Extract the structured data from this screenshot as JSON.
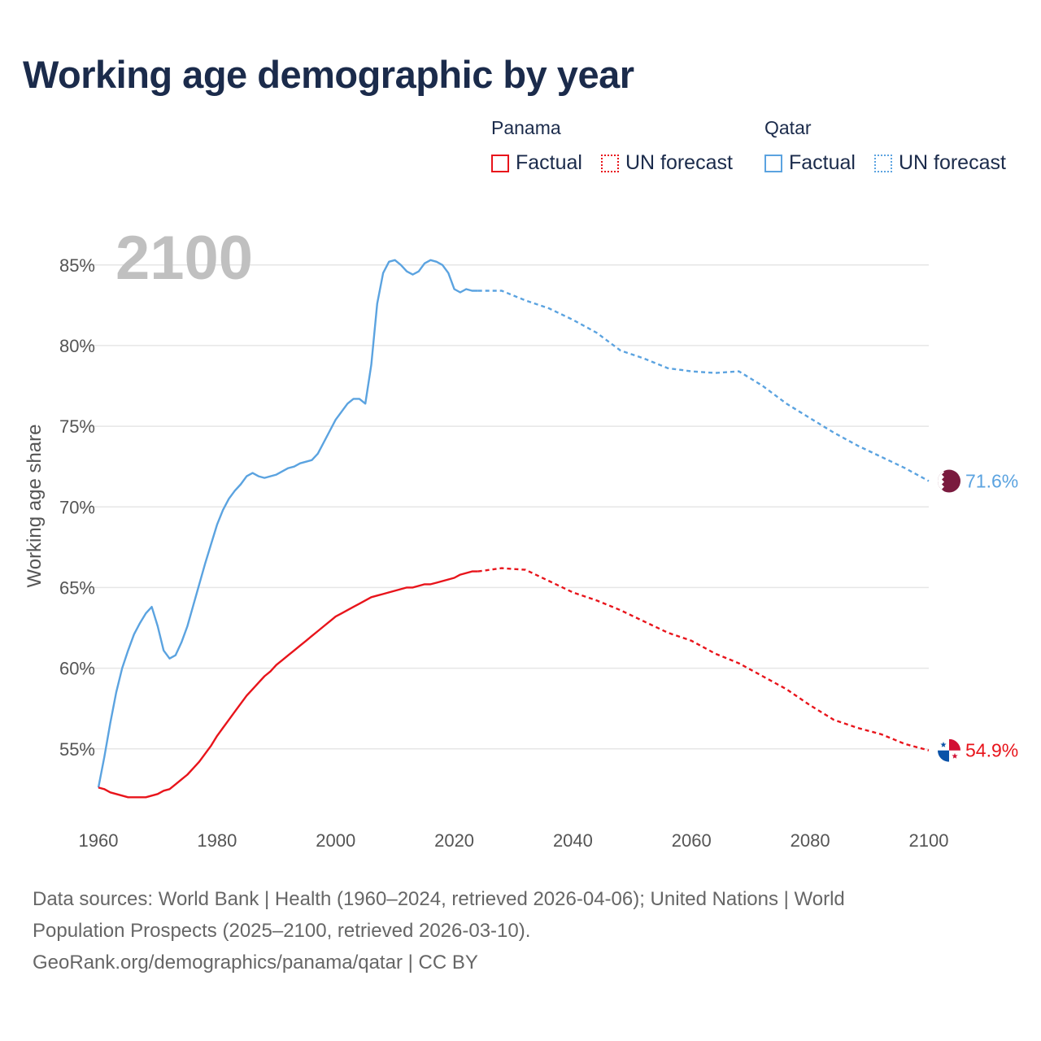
{
  "title": "Working age demographic by year",
  "legend": {
    "panama": {
      "group": "Panama",
      "factual": "Factual",
      "forecast": "UN forecast"
    },
    "qatar": {
      "group": "Qatar",
      "factual": "Factual",
      "forecast": "UN forecast"
    }
  },
  "source": {
    "line1": "Data sources: World Bank | Health (1960–2024, retrieved 2026-04-06); United Nations | World",
    "line2": "Population Prospects (2025–2100, retrieved 2026-03-10).",
    "line3": "GeoRank.org/demographics/panama/qatar | CC BY"
  },
  "chart_data": {
    "type": "line",
    "year_label": "2100",
    "ylabel": "Working age share",
    "xlim": [
      1960,
      2100
    ],
    "ylim": [
      50.5,
      86.5
    ],
    "x_ticks": [
      "1960",
      "1980",
      "2000",
      "2020",
      "2040",
      "2060",
      "2080",
      "2100"
    ],
    "y_ticks": [
      "55%",
      "60%",
      "65%",
      "70%",
      "75%",
      "80%",
      "85%"
    ],
    "forecast_start_year": 2024,
    "series": [
      {
        "name": "Qatar",
        "color": "#5ba3e0",
        "end_label": "71.6%",
        "flag": "qatar-flag",
        "points": [
          [
            1960,
            52.6
          ],
          [
            1961,
            54.5
          ],
          [
            1962,
            56.6
          ],
          [
            1963,
            58.5
          ],
          [
            1964,
            60.0
          ],
          [
            1965,
            61.1
          ],
          [
            1966,
            62.1
          ],
          [
            1967,
            62.8
          ],
          [
            1968,
            63.4
          ],
          [
            1969,
            63.8
          ],
          [
            1970,
            62.6
          ],
          [
            1971,
            61.1
          ],
          [
            1972,
            60.6
          ],
          [
            1973,
            60.8
          ],
          [
            1974,
            61.6
          ],
          [
            1975,
            62.6
          ],
          [
            1976,
            63.9
          ],
          [
            1977,
            65.2
          ],
          [
            1978,
            66.5
          ],
          [
            1979,
            67.7
          ],
          [
            1980,
            68.9
          ],
          [
            1981,
            69.8
          ],
          [
            1982,
            70.5
          ],
          [
            1983,
            71.0
          ],
          [
            1984,
            71.4
          ],
          [
            1985,
            71.9
          ],
          [
            1986,
            72.1
          ],
          [
            1987,
            71.9
          ],
          [
            1988,
            71.8
          ],
          [
            1989,
            71.9
          ],
          [
            1990,
            72.0
          ],
          [
            1991,
            72.2
          ],
          [
            1992,
            72.4
          ],
          [
            1993,
            72.5
          ],
          [
            1994,
            72.7
          ],
          [
            1995,
            72.8
          ],
          [
            1996,
            72.9
          ],
          [
            1997,
            73.3
          ],
          [
            1998,
            74.0
          ],
          [
            1999,
            74.7
          ],
          [
            2000,
            75.4
          ],
          [
            2001,
            75.9
          ],
          [
            2002,
            76.4
          ],
          [
            2003,
            76.7
          ],
          [
            2004,
            76.7
          ],
          [
            2005,
            76.4
          ],
          [
            2006,
            78.8
          ],
          [
            2007,
            82.6
          ],
          [
            2008,
            84.5
          ],
          [
            2009,
            85.2
          ],
          [
            2010,
            85.3
          ],
          [
            2011,
            85.0
          ],
          [
            2012,
            84.6
          ],
          [
            2013,
            84.4
          ],
          [
            2014,
            84.6
          ],
          [
            2015,
            85.1
          ],
          [
            2016,
            85.3
          ],
          [
            2017,
            85.2
          ],
          [
            2018,
            85.0
          ],
          [
            2019,
            84.5
          ],
          [
            2020,
            83.5
          ],
          [
            2021,
            83.3
          ],
          [
            2022,
            83.5
          ],
          [
            2023,
            83.4
          ],
          [
            2024,
            83.4
          ],
          [
            2028,
            83.4
          ],
          [
            2032,
            82.8
          ],
          [
            2036,
            82.3
          ],
          [
            2040,
            81.6
          ],
          [
            2044,
            80.8
          ],
          [
            2048,
            79.7
          ],
          [
            2052,
            79.2
          ],
          [
            2056,
            78.6
          ],
          [
            2060,
            78.4
          ],
          [
            2064,
            78.3
          ],
          [
            2068,
            78.4
          ],
          [
            2072,
            77.5
          ],
          [
            2076,
            76.4
          ],
          [
            2080,
            75.5
          ],
          [
            2084,
            74.6
          ],
          [
            2088,
            73.8
          ],
          [
            2092,
            73.1
          ],
          [
            2096,
            72.4
          ],
          [
            2100,
            71.6
          ]
        ]
      },
      {
        "name": "Panama",
        "color": "#e8141b",
        "end_label": "54.9%",
        "flag": "panama-flag",
        "points": [
          [
            1960,
            52.6
          ],
          [
            1961,
            52.5
          ],
          [
            1962,
            52.3
          ],
          [
            1963,
            52.2
          ],
          [
            1964,
            52.1
          ],
          [
            1965,
            52.0
          ],
          [
            1966,
            52.0
          ],
          [
            1967,
            52.0
          ],
          [
            1968,
            52.0
          ],
          [
            1969,
            52.1
          ],
          [
            1970,
            52.2
          ],
          [
            1971,
            52.4
          ],
          [
            1972,
            52.5
          ],
          [
            1973,
            52.8
          ],
          [
            1974,
            53.1
          ],
          [
            1975,
            53.4
          ],
          [
            1976,
            53.8
          ],
          [
            1977,
            54.2
          ],
          [
            1978,
            54.7
          ],
          [
            1979,
            55.2
          ],
          [
            1980,
            55.8
          ],
          [
            1981,
            56.3
          ],
          [
            1982,
            56.8
          ],
          [
            1983,
            57.3
          ],
          [
            1984,
            57.8
          ],
          [
            1985,
            58.3
          ],
          [
            1986,
            58.7
          ],
          [
            1987,
            59.1
          ],
          [
            1988,
            59.5
          ],
          [
            1989,
            59.8
          ],
          [
            1990,
            60.2
          ],
          [
            1991,
            60.5
          ],
          [
            1992,
            60.8
          ],
          [
            1993,
            61.1
          ],
          [
            1994,
            61.4
          ],
          [
            1995,
            61.7
          ],
          [
            1996,
            62.0
          ],
          [
            1997,
            62.3
          ],
          [
            1998,
            62.6
          ],
          [
            1999,
            62.9
          ],
          [
            2000,
            63.2
          ],
          [
            2001,
            63.4
          ],
          [
            2002,
            63.6
          ],
          [
            2003,
            63.8
          ],
          [
            2004,
            64.0
          ],
          [
            2005,
            64.2
          ],
          [
            2006,
            64.4
          ],
          [
            2007,
            64.5
          ],
          [
            2008,
            64.6
          ],
          [
            2009,
            64.7
          ],
          [
            2010,
            64.8
          ],
          [
            2011,
            64.9
          ],
          [
            2012,
            65.0
          ],
          [
            2013,
            65.0
          ],
          [
            2014,
            65.1
          ],
          [
            2015,
            65.2
          ],
          [
            2016,
            65.2
          ],
          [
            2017,
            65.3
          ],
          [
            2018,
            65.4
          ],
          [
            2019,
            65.5
          ],
          [
            2020,
            65.6
          ],
          [
            2021,
            65.8
          ],
          [
            2022,
            65.9
          ],
          [
            2023,
            66.0
          ],
          [
            2024,
            66.0
          ],
          [
            2028,
            66.2
          ],
          [
            2032,
            66.1
          ],
          [
            2036,
            65.4
          ],
          [
            2040,
            64.7
          ],
          [
            2044,
            64.2
          ],
          [
            2048,
            63.6
          ],
          [
            2052,
            62.9
          ],
          [
            2056,
            62.2
          ],
          [
            2060,
            61.7
          ],
          [
            2064,
            60.9
          ],
          [
            2068,
            60.3
          ],
          [
            2072,
            59.5
          ],
          [
            2076,
            58.7
          ],
          [
            2080,
            57.7
          ],
          [
            2084,
            56.8
          ],
          [
            2088,
            56.3
          ],
          [
            2092,
            55.9
          ],
          [
            2096,
            55.3
          ],
          [
            2100,
            54.9
          ]
        ]
      }
    ]
  }
}
